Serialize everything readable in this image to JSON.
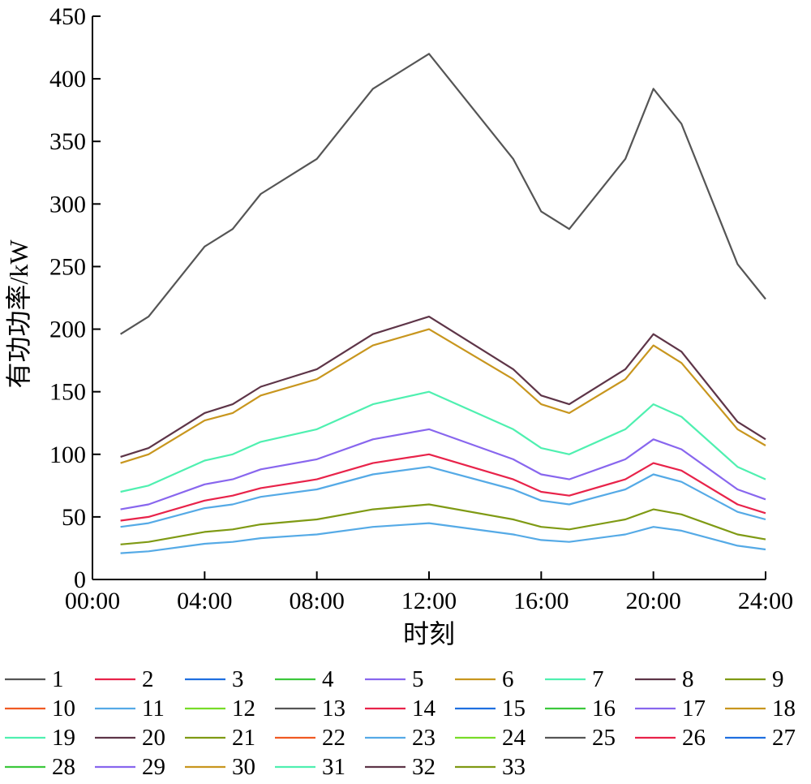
{
  "chart_data": {
    "type": "line",
    "title": "",
    "xlabel": "时刻",
    "ylabel": "有功功率/kW",
    "x": [
      1,
      2,
      4,
      5,
      6,
      8,
      10,
      12,
      15,
      16,
      17,
      19,
      20,
      21,
      23,
      24
    ],
    "xlim": [
      0,
      24
    ],
    "ylim": [
      0,
      450
    ],
    "xticks": [
      0,
      4,
      8,
      12,
      16,
      20,
      24
    ],
    "xtick_labels": [
      "00:00",
      "04:00",
      "08:00",
      "12:00",
      "16:00",
      "20:00",
      "24:00"
    ],
    "yticks": [
      0,
      50,
      100,
      150,
      200,
      250,
      300,
      350,
      400,
      450
    ],
    "ytick_labels": [
      "0",
      "50",
      "100",
      "150",
      "200",
      "250",
      "300",
      "350",
      "400",
      "450"
    ],
    "grid": false,
    "legend_position": "bottom",
    "legend_columns": 9,
    "legend": [
      {
        "name": "1",
        "color": "#555555"
      },
      {
        "name": "2",
        "color": "#e8234a"
      },
      {
        "name": "3",
        "color": "#1f6fe0"
      },
      {
        "name": "4",
        "color": "#3cc83c"
      },
      {
        "name": "5",
        "color": "#8866ee"
      },
      {
        "name": "6",
        "color": "#c8961e"
      },
      {
        "name": "7",
        "color": "#4ff0b0"
      },
      {
        "name": "8",
        "color": "#5e3548"
      },
      {
        "name": "9",
        "color": "#7f9a14"
      },
      {
        "name": "10",
        "color": "#f05a23"
      },
      {
        "name": "11",
        "color": "#55aae6"
      },
      {
        "name": "12",
        "color": "#78dc28"
      },
      {
        "name": "13",
        "color": "#555555"
      },
      {
        "name": "14",
        "color": "#e8234a"
      },
      {
        "name": "15",
        "color": "#1f6fe0"
      },
      {
        "name": "16",
        "color": "#3cc83c"
      },
      {
        "name": "17",
        "color": "#8866ee"
      },
      {
        "name": "18",
        "color": "#c8961e"
      },
      {
        "name": "19",
        "color": "#4ff0b0"
      },
      {
        "name": "20",
        "color": "#5e3548"
      },
      {
        "name": "21",
        "color": "#7f9a14"
      },
      {
        "name": "22",
        "color": "#f05a23"
      },
      {
        "name": "23",
        "color": "#55aae6"
      },
      {
        "name": "24",
        "color": "#78dc28"
      },
      {
        "name": "25",
        "color": "#555555"
      },
      {
        "name": "26",
        "color": "#e8234a"
      },
      {
        "name": "27",
        "color": "#1f6fe0"
      },
      {
        "name": "28",
        "color": "#3cc83c"
      },
      {
        "name": "29",
        "color": "#8866ee"
      },
      {
        "name": "30",
        "color": "#c8961e"
      },
      {
        "name": "31",
        "color": "#4ff0b0"
      },
      {
        "name": "32",
        "color": "#5e3548"
      },
      {
        "name": "33",
        "color": "#7f9a14"
      }
    ],
    "series": [
      {
        "name": "1",
        "color": "#555555",
        "values": [
          196,
          210,
          266,
          280,
          308,
          336,
          392,
          420,
          336,
          294,
          280,
          336,
          392,
          364,
          252,
          224
        ]
      },
      {
        "name": "32",
        "color": "#5e3548",
        "values": [
          98,
          105,
          133,
          140,
          154,
          168,
          196,
          210,
          168,
          147,
          140,
          168,
          196,
          182,
          126,
          112
        ]
      },
      {
        "name": "30",
        "color": "#c8961e",
        "values": [
          93,
          100,
          127,
          133,
          147,
          160,
          187,
          200,
          160,
          140,
          133,
          160,
          187,
          173,
          120,
          107
        ]
      },
      {
        "name": "31",
        "color": "#4ff0b0",
        "values": [
          70,
          75,
          95,
          100,
          110,
          120,
          140,
          150,
          120,
          105,
          100,
          120,
          140,
          130,
          90,
          80
        ]
      },
      {
        "name": "29",
        "color": "#8866ee",
        "values": [
          56,
          60,
          76,
          80,
          88,
          96,
          112,
          120,
          96,
          84,
          80,
          96,
          112,
          104,
          72,
          64
        ]
      },
      {
        "name": "26",
        "color": "#e8234a",
        "values": [
          47,
          50,
          63,
          67,
          73,
          80,
          93,
          100,
          80,
          70,
          67,
          80,
          93,
          87,
          60,
          53
        ]
      },
      {
        "name": "23",
        "color": "#55aae6",
        "values": [
          42,
          45,
          57,
          60,
          66,
          72,
          84,
          90,
          72,
          63,
          60,
          72,
          84,
          78,
          54,
          48
        ]
      },
      {
        "name": "33",
        "color": "#7f9a14",
        "values": [
          28,
          30,
          38,
          40,
          44,
          48,
          56,
          60,
          48,
          42,
          40,
          48,
          56,
          52,
          36,
          32
        ]
      },
      {
        "name": "11",
        "color": "#55aae6",
        "values": [
          21,
          22.5,
          28.5,
          30,
          33,
          36,
          42,
          45,
          36,
          31.5,
          30,
          36,
          42,
          39,
          27,
          24
        ]
      }
    ]
  }
}
